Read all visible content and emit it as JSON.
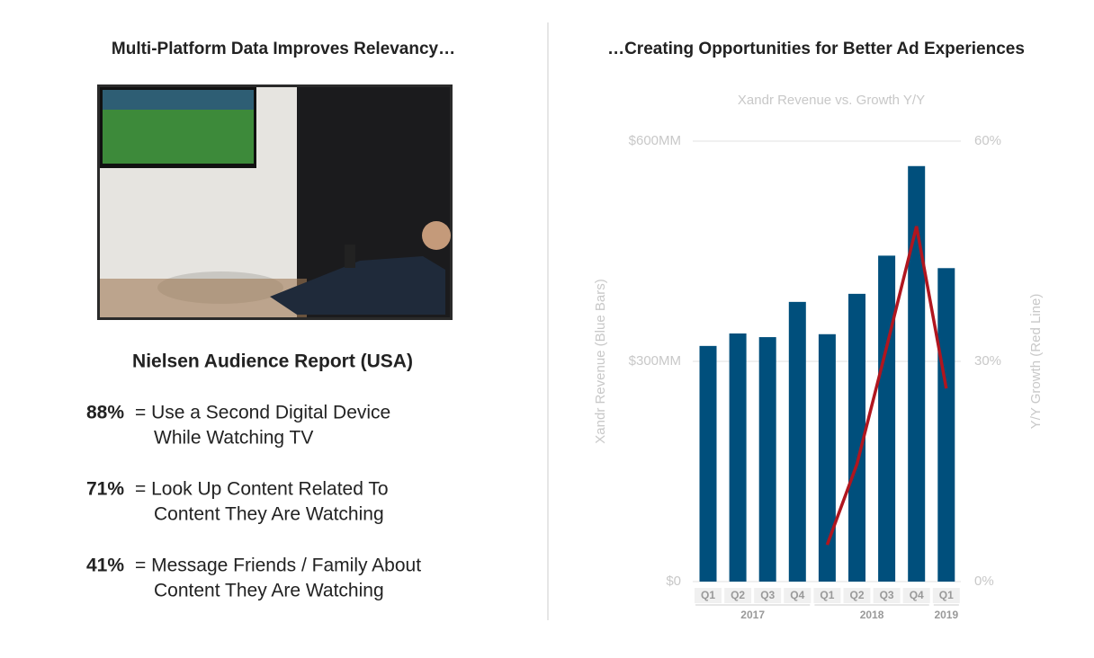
{
  "left": {
    "heading": "Multi-Platform Data Improves Relevancy…",
    "report_title": "Nielsen Audience Report (USA)",
    "items": [
      {
        "pct": "88%",
        "lines": [
          "= Use a Second Digital Device",
          "While Watching TV"
        ]
      },
      {
        "pct": "71%",
        "lines": [
          "= Look Up Content Related To",
          "Content They Are Watching"
        ]
      },
      {
        "pct": "41%",
        "lines": [
          "= Message Friends / Family About",
          "Content They Are Watching"
        ]
      }
    ]
  },
  "right": {
    "heading": "…Creating Opportunities for Better Ad Experiences"
  },
  "chart_data": {
    "type": "bar",
    "title": "Xandr Revenue vs. Growth Y/Y",
    "y_label": "Xandr  Revenue (Blue Bars)",
    "y2_label": "Y/Y Growth (Red Line)",
    "categories": [
      "Q1",
      "Q2",
      "Q3",
      "Q4",
      "Q1",
      "Q2",
      "Q3",
      "Q4",
      "Q1"
    ],
    "group_labels": [
      "2017",
      "2018",
      "2019"
    ],
    "group_sizes": [
      4,
      4,
      1
    ],
    "series": [
      {
        "name": "Xandr Revenue",
        "type": "bar",
        "color": "#004f7c",
        "values": [
          321,
          338,
          333,
          381,
          337,
          392,
          444,
          566,
          427
        ]
      },
      {
        "name": "Y/Y Growth",
        "type": "line",
        "axis": "y2",
        "color": "#b0161f",
        "values": [
          null,
          null,
          null,
          null,
          5,
          16,
          32,
          48.4,
          26.3
        ]
      }
    ],
    "ylim": [
      0,
      600
    ],
    "yticks": [
      {
        "value": 0,
        "label": "$0"
      },
      {
        "value": 300,
        "label": "$300MM"
      },
      {
        "value": 600,
        "label": "$600MM"
      }
    ],
    "y2lim": [
      0,
      60
    ],
    "y2ticks": [
      {
        "value": 0,
        "label": "0%"
      },
      {
        "value": 30,
        "label": "30%"
      },
      {
        "value": 60,
        "label": "60%"
      }
    ],
    "grid": true
  }
}
